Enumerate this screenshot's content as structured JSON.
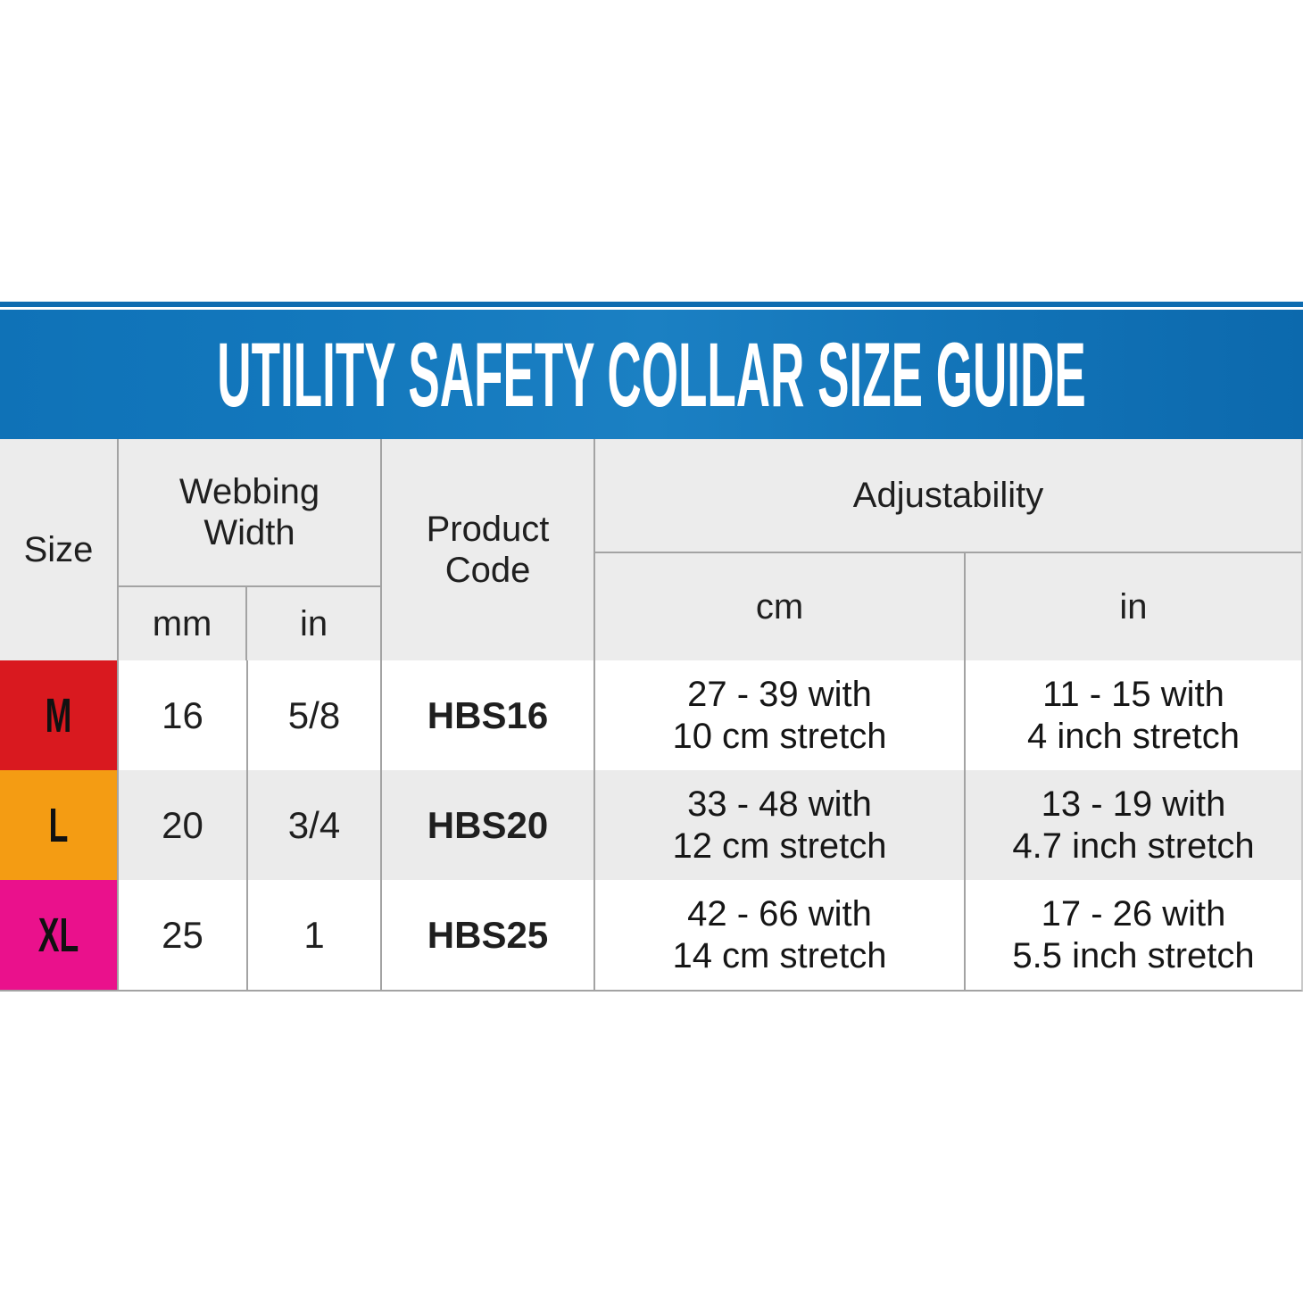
{
  "banner": {
    "title": "UTILITY SAFETY COLLAR SIZE GUIDE",
    "background_blue": "#1378bd",
    "top_rule_color": "#0e6cb0",
    "text_color": "#ffffff"
  },
  "table": {
    "header_bg": "#ececec",
    "stripe_color": "#ebebeb",
    "border_color": "#a3a3a3",
    "headers": {
      "size": "Size",
      "webbing_width_line1": "Webbing",
      "webbing_width_line2": "Width",
      "webbing_unit_mm": "mm",
      "webbing_unit_in": "in",
      "product_code_line1": "Product",
      "product_code_line2": "Code",
      "adjustability": "Adjustability",
      "adjust_unit_cm": "cm",
      "adjust_unit_in": "in"
    },
    "rows": [
      {
        "size": "M",
        "size_bg": "#d9191f",
        "webbing_mm": "16",
        "webbing_in": "5/8",
        "product_code": "HBS16",
        "adjust_cm_line1": "27 - 39 with",
        "adjust_cm_line2": "10 cm stretch",
        "adjust_in_line1": "11 - 15 with",
        "adjust_in_line2": "4 inch stretch"
      },
      {
        "size": "L",
        "size_bg": "#f49c13",
        "webbing_mm": "20",
        "webbing_in": "3/4",
        "product_code": "HBS20",
        "adjust_cm_line1": "33 - 48 with",
        "adjust_cm_line2": "12 cm stretch",
        "adjust_in_line1": "13 - 19 with",
        "adjust_in_line2": "4.7 inch stretch"
      },
      {
        "size": "XL",
        "size_bg": "#ea118c",
        "webbing_mm": "25",
        "webbing_in": "1",
        "product_code": "HBS25",
        "adjust_cm_line1": "42 - 66 with",
        "adjust_cm_line2": "14 cm stretch",
        "adjust_in_line1": "17 - 26 with",
        "adjust_in_line2": "5.5 inch stretch"
      }
    ]
  }
}
